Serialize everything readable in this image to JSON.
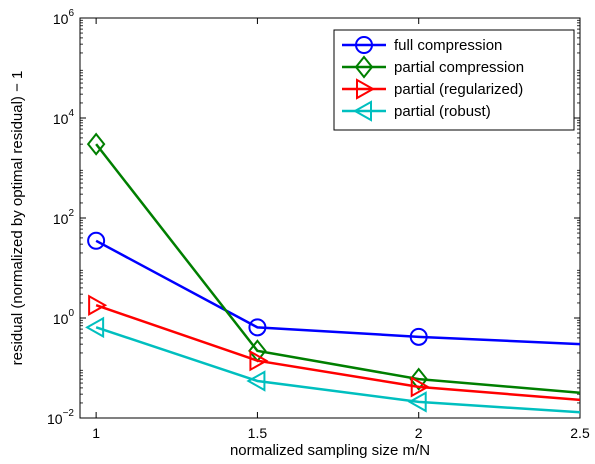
{
  "chart_data": {
    "type": "line",
    "title": "",
    "xlabel": "normalized sampling size m/N",
    "ylabel": "residual (normalized by optimal residual) − 1",
    "xlim": [
      0.95,
      2.5
    ],
    "ylim": [
      0.01,
      1000000
    ],
    "yscale": "log",
    "xticks": [
      1,
      1.5,
      2,
      2.5
    ],
    "xtick_labels": [
      "1",
      "1.5",
      "2",
      "2.5"
    ],
    "yticks": [
      0.01,
      1,
      100,
      10000,
      1000000
    ],
    "ytick_labels": [
      {
        "base": "10",
        "exp": "−2"
      },
      {
        "base": "10",
        "exp": "0"
      },
      {
        "base": "10",
        "exp": "2"
      },
      {
        "base": "10",
        "exp": "4"
      },
      {
        "base": "10",
        "exp": "6"
      }
    ],
    "grid": false,
    "legend_position": "top-right",
    "x": [
      1,
      1.5,
      2,
      2.5
    ],
    "series": [
      {
        "name": "full compression",
        "color": "#0000ff",
        "marker": "circle",
        "values": [
          35,
          0.65,
          0.42,
          0.3
        ]
      },
      {
        "name": "partial compression",
        "color": "#007f00",
        "marker": "diamond",
        "values": [
          3000,
          0.22,
          0.06,
          0.032
        ]
      },
      {
        "name": "partial (regularized)",
        "color": "#ff0000",
        "marker": "triangle-right",
        "values": [
          1.8,
          0.14,
          0.042,
          0.023
        ]
      },
      {
        "name": "partial (robust)",
        "color": "#00bfbf",
        "marker": "triangle-left",
        "values": [
          0.65,
          0.055,
          0.021,
          0.013
        ]
      }
    ]
  }
}
